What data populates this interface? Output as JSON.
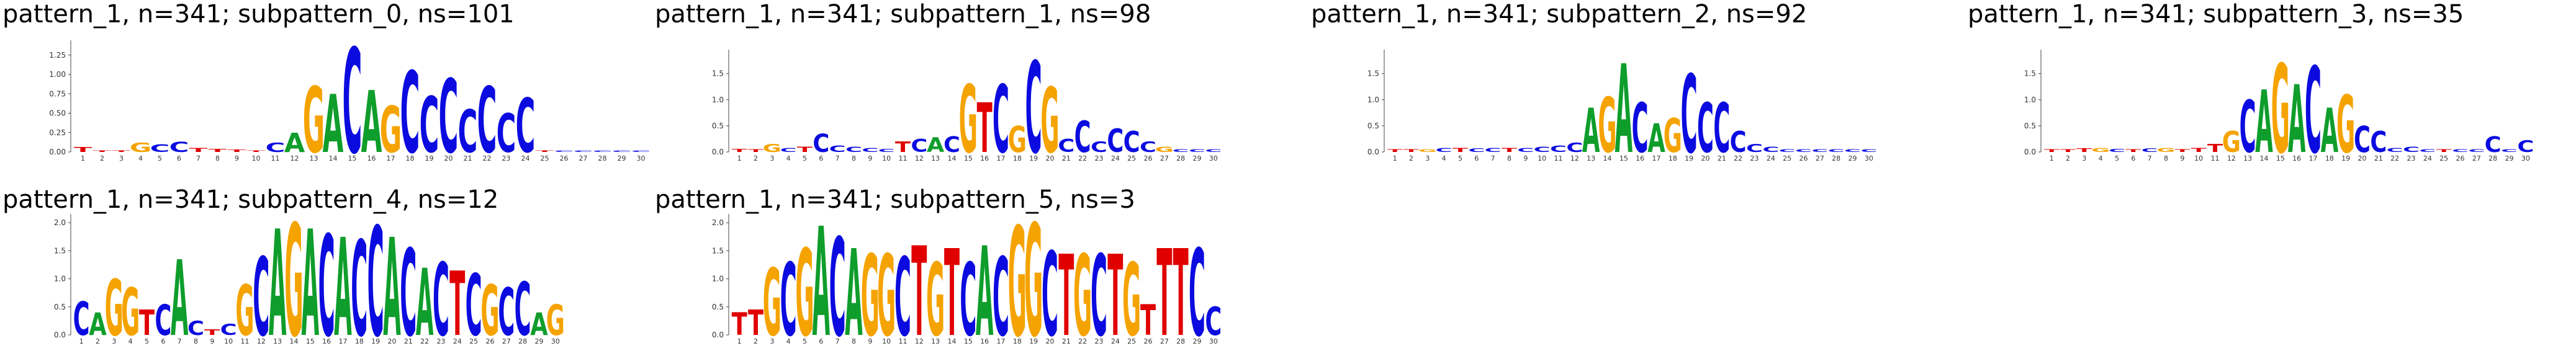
{
  "chart_data": [
    {
      "type": "sequence-logo",
      "title": "pattern_1, n=341; subpattern_0, ns=101",
      "yticks": [
        "0.00",
        "0.25",
        "0.50",
        "0.75",
        "1.00",
        "1.25"
      ],
      "ylim": [
        0,
        1.4
      ],
      "positions": [
        1,
        2,
        3,
        4,
        5,
        6,
        7,
        8,
        9,
        10,
        11,
        12,
        13,
        14,
        15,
        16,
        17,
        18,
        19,
        20,
        21,
        22,
        23,
        24,
        25,
        26,
        27,
        28,
        29,
        30
      ],
      "consensus": "TTTGCCTTTTCAGACAGCCCCCCCTCCCCC",
      "heights": [
        0.06,
        0.02,
        0.02,
        0.12,
        0.1,
        0.13,
        0.05,
        0.04,
        0.03,
        0.02,
        0.12,
        0.25,
        0.85,
        0.75,
        1.35,
        0.8,
        0.6,
        1.05,
        0.72,
        0.95,
        0.55,
        0.85,
        0.5,
        0.7,
        0.02,
        0.02,
        0.02,
        0.02,
        0.02,
        0.02
      ]
    },
    {
      "type": "sequence-logo",
      "title": "pattern_1, n=341; subpattern_1, ns=98",
      "yticks": [
        "0.0",
        "0.5",
        "1.0",
        "1.5"
      ],
      "ylim": [
        0,
        1.9
      ],
      "positions": [
        1,
        2,
        3,
        4,
        5,
        6,
        7,
        8,
        9,
        10,
        11,
        12,
        13,
        14,
        15,
        16,
        17,
        18,
        19,
        20,
        21,
        22,
        23,
        24,
        25,
        26,
        27,
        28,
        29,
        30
      ],
      "consensus": "TTGCTCCCCCTCACGTCGCGCCCCCCGCCC",
      "heights": [
        0.06,
        0.05,
        0.15,
        0.08,
        0.1,
        0.35,
        0.12,
        0.1,
        0.08,
        0.06,
        0.2,
        0.25,
        0.28,
        0.3,
        1.3,
        0.95,
        1.3,
        0.5,
        1.75,
        1.25,
        0.25,
        0.6,
        0.2,
        0.45,
        0.4,
        0.2,
        0.1,
        0.05,
        0.05,
        0.05
      ]
    },
    {
      "type": "sequence-logo",
      "title": "pattern_1, n=341; subpattern_2, ns=92",
      "yticks": [
        "0.0",
        "0.5",
        "1.0",
        "1.5"
      ],
      "ylim": [
        0,
        1.9
      ],
      "positions": [
        1,
        2,
        3,
        4,
        5,
        6,
        7,
        8,
        9,
        10,
        11,
        12,
        13,
        14,
        15,
        16,
        17,
        18,
        19,
        20,
        21,
        22,
        23,
        24,
        25,
        26,
        27,
        28,
        29,
        30
      ],
      "consensus": "TTGCTCCTCCCCAGACAGCCCCCCCCCCCC",
      "heights": [
        0.05,
        0.05,
        0.05,
        0.08,
        0.08,
        0.07,
        0.08,
        0.08,
        0.08,
        0.1,
        0.12,
        0.18,
        0.85,
        1.05,
        1.7,
        0.95,
        0.55,
        0.65,
        1.5,
        0.95,
        0.95,
        0.4,
        0.15,
        0.1,
        0.05,
        0.05,
        0.05,
        0.05,
        0.05,
        0.05
      ]
    },
    {
      "type": "sequence-logo",
      "title": "pattern_1, n=341; subpattern_3, ns=35",
      "yticks": [
        "0.0",
        "0.5",
        "1.0",
        "1.5"
      ],
      "ylim": [
        0,
        1.9
      ],
      "positions": [
        1,
        2,
        3,
        4,
        5,
        6,
        7,
        8,
        9,
        10,
        11,
        12,
        13,
        14,
        15,
        16,
        17,
        18,
        19,
        20,
        21,
        22,
        23,
        24,
        25,
        26,
        27,
        28,
        29,
        30
      ],
      "consensus": "TTTGCTCGTTTGCAGACAGCCCCCTCCCCC",
      "heights": [
        0.05,
        0.05,
        0.07,
        0.08,
        0.06,
        0.05,
        0.07,
        0.08,
        0.05,
        0.08,
        0.15,
        0.4,
        1.0,
        1.2,
        1.7,
        1.3,
        1.65,
        0.85,
        1.1,
        0.5,
        0.4,
        0.08,
        0.1,
        0.05,
        0.05,
        0.05,
        0.05,
        0.3,
        0.05,
        0.22
      ]
    },
    {
      "type": "sequence-logo",
      "title": "pattern_1, n=341; subpattern_4, ns=12",
      "yticks": [
        "0.0",
        "0.5",
        "1.0",
        "1.5",
        "2.0"
      ],
      "ylim": [
        0,
        2.1
      ],
      "positions": [
        1,
        2,
        3,
        4,
        5,
        6,
        7,
        8,
        9,
        10,
        11,
        12,
        13,
        14,
        15,
        16,
        17,
        18,
        19,
        20,
        21,
        22,
        23,
        24,
        25,
        26,
        27,
        28,
        29,
        30
      ],
      "consensus": "CAGGTCACTCGCAGACACCACACTCGCCAG",
      "heights": [
        0.6,
        0.4,
        1.0,
        0.85,
        0.45,
        0.55,
        1.35,
        0.25,
        0.1,
        0.2,
        0.9,
        1.4,
        1.9,
        2.0,
        1.9,
        1.8,
        1.75,
        1.7,
        1.95,
        1.75,
        1.55,
        1.2,
        1.3,
        1.15,
        1.1,
        0.9,
        0.85,
        0.95,
        0.4,
        0.55
      ]
    },
    {
      "type": "sequence-logo",
      "title": "pattern_1, n=341; subpattern_5, ns=3",
      "yticks": [
        "0.0",
        "0.5",
        "1.0",
        "1.5",
        "2.0"
      ],
      "ylim": [
        0,
        2.1
      ],
      "positions": [
        1,
        2,
        3,
        4,
        5,
        6,
        7,
        8,
        9,
        10,
        11,
        12,
        13,
        14,
        15,
        16,
        17,
        18,
        19,
        20,
        21,
        22,
        23,
        24,
        25,
        26,
        27,
        28,
        29,
        30
      ],
      "consensus": "TTGCGACAGGCTGTCACGGCTGCTGTTTCC",
      "heights": [
        0.4,
        0.45,
        1.2,
        1.3,
        1.55,
        1.95,
        1.75,
        1.55,
        1.45,
        1.45,
        1.4,
        1.6,
        1.3,
        1.55,
        1.3,
        1.6,
        1.4,
        1.95,
        2.0,
        1.5,
        1.45,
        1.45,
        1.45,
        1.45,
        1.3,
        0.55,
        1.55,
        1.55,
        1.55,
        0.5
      ]
    }
  ],
  "colors": {
    "A": "#0f9d2b",
    "C": "#0b0be0",
    "G": "#f5a300",
    "T": "#e00000",
    "axis": "#444444"
  }
}
